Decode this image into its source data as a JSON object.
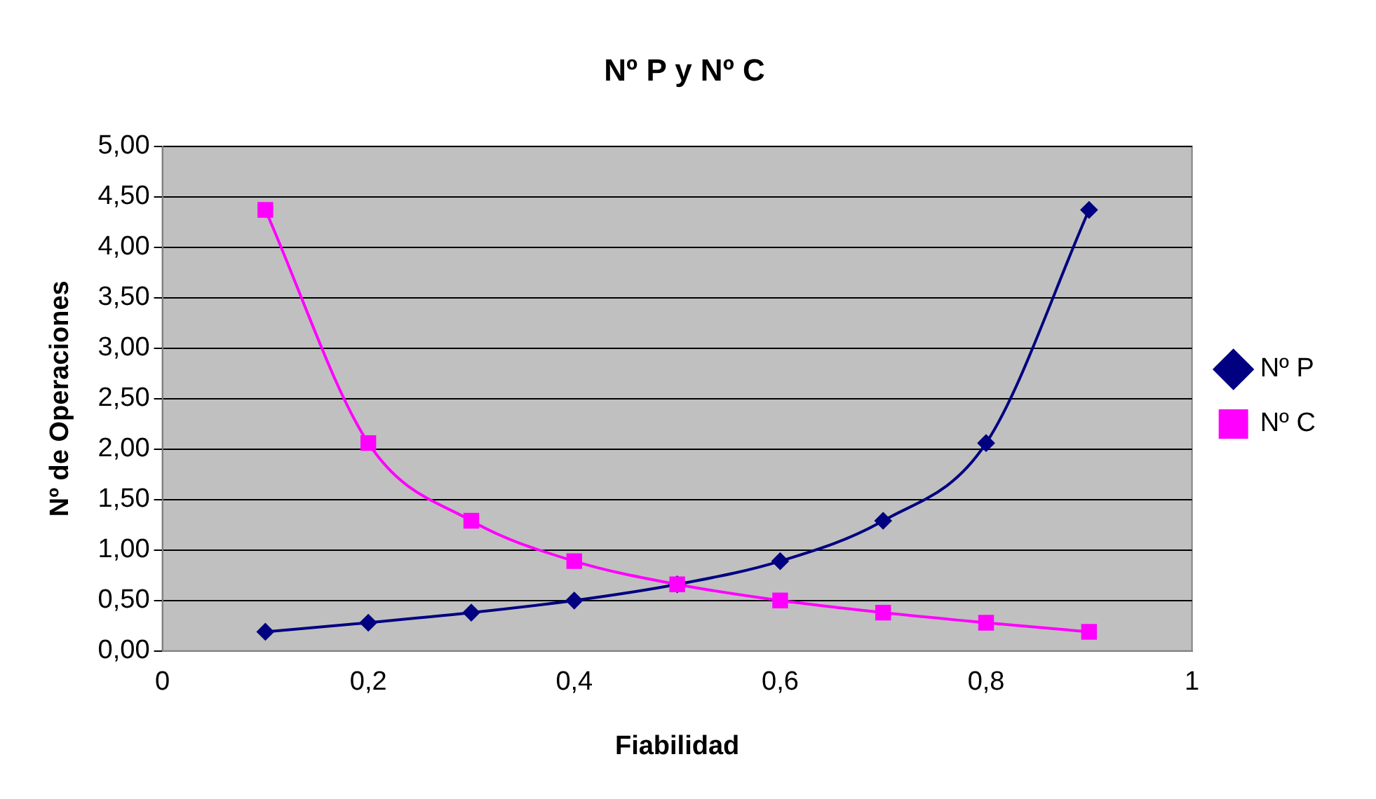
{
  "chart_data": {
    "type": "line",
    "title": "Nº P y Nº C",
    "xlabel": "Fiabilidad",
    "ylabel": "Nº de Operaciones",
    "x": [
      0.1,
      0.2,
      0.3,
      0.4,
      0.5,
      0.6,
      0.7,
      0.8,
      0.9
    ],
    "series": [
      {
        "name": "Nº P",
        "color": "#000080",
        "marker": "diamond",
        "values": [
          0.19,
          0.28,
          0.38,
          0.5,
          0.66,
          0.89,
          1.29,
          2.06,
          4.37
        ]
      },
      {
        "name": "Nº C",
        "color": "#ff00ff",
        "marker": "square",
        "values": [
          4.37,
          2.06,
          1.29,
          0.89,
          0.66,
          0.5,
          0.38,
          0.28,
          0.19
        ]
      }
    ],
    "xlim": [
      0,
      1
    ],
    "xticks": [
      0,
      {
        "value": 0.2,
        "label": "0,2"
      },
      {
        "value": 0.4,
        "label": "0,4"
      },
      {
        "value": 0.6,
        "label": "0,6"
      },
      {
        "value": 0.8,
        "label": "0,8"
      },
      1
    ],
    "ylim": [
      0,
      5
    ],
    "yticks": [
      {
        "value": 0,
        "label": "0,00"
      },
      {
        "value": 0.5,
        "label": "0,50"
      },
      {
        "value": 1,
        "label": "1,00"
      },
      {
        "value": 1.5,
        "label": "1,50"
      },
      {
        "value": 2,
        "label": "2,00"
      },
      {
        "value": 2.5,
        "label": "2,50"
      },
      {
        "value": 3,
        "label": "3,00"
      },
      {
        "value": 3.5,
        "label": "3,50"
      },
      {
        "value": 4,
        "label": "4,00"
      },
      {
        "value": 4.5,
        "label": "4,50"
      },
      {
        "value": 5,
        "label": "5,00"
      }
    ],
    "grid": "y",
    "legend": "right"
  }
}
